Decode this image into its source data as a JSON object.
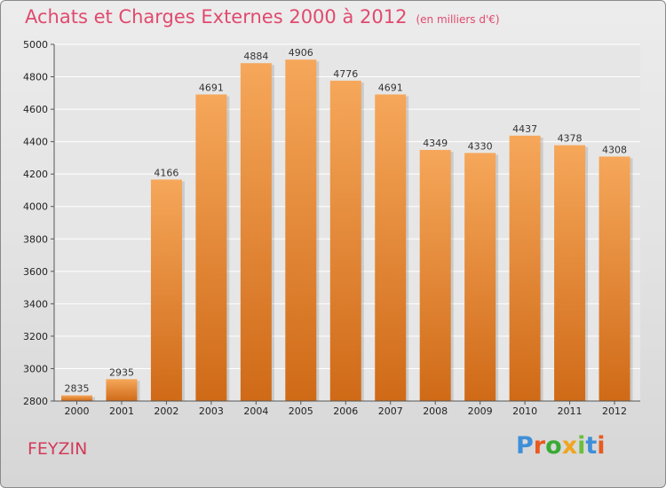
{
  "header": {
    "title": "Achats et Charges Externes 2000 à 2012",
    "subtitle": "(en milliers d'€)"
  },
  "footer": {
    "town": "FEYZIN",
    "logo": "Proxiti"
  },
  "colors": {
    "title": "#e04a6e",
    "bar_top": "#f6a75a",
    "bar_bottom": "#cf6a17",
    "logo_letters": [
      "#3f8fd8",
      "#e85a1f",
      "#3aaa35",
      "#f0a51e",
      "#6abf3a",
      "#3f8fd8",
      "#e85a1f"
    ]
  },
  "chart_data": {
    "type": "bar",
    "categories": [
      "2000",
      "2001",
      "2002",
      "2003",
      "2004",
      "2005",
      "2006",
      "2007",
      "2008",
      "2009",
      "2010",
      "2011",
      "2012"
    ],
    "values": [
      2835,
      2935,
      4166,
      4691,
      4884,
      4906,
      4776,
      4691,
      4349,
      4330,
      4437,
      4378,
      4308
    ],
    "title": "Achats et Charges Externes 2000 à 2012",
    "ylim": [
      2800,
      5000
    ],
    "yticks": [
      2800,
      3000,
      3200,
      3400,
      3600,
      3800,
      4000,
      4200,
      4400,
      4600,
      4800,
      5000
    ],
    "grid": true,
    "legend": "none"
  }
}
